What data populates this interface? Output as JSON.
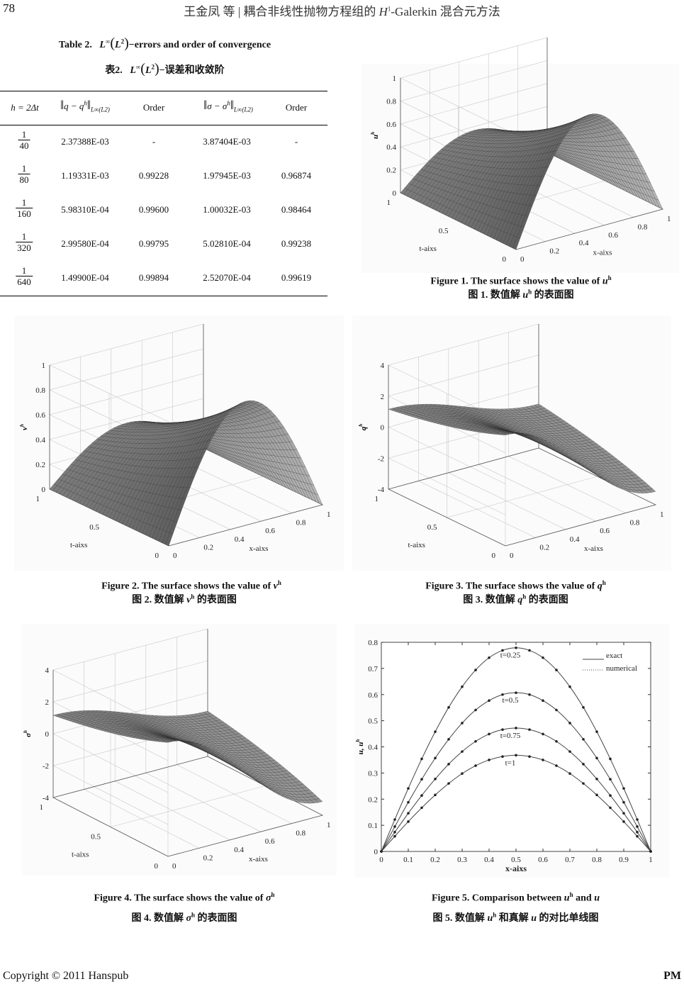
{
  "header": {
    "page_number": "78",
    "running_title_a": "王金凤 等 | 耦合非线性抛物方程组的 ",
    "running_title_h": "H",
    "running_title_sup": "1",
    "running_title_b": "-Galerkin 混合元方法"
  },
  "table": {
    "caption_en": {
      "label": "Table 2.",
      "norm": "L",
      "norm_sup": "∞",
      "inner": "L",
      "inner_sup": "2",
      "text": "−errors and order of convergence"
    },
    "caption_zh": {
      "label": "表2.",
      "norm": "L",
      "norm_sup": "∞",
      "inner": "L",
      "inner_sup": "2",
      "text": "−误差和收敛阶"
    },
    "headers": {
      "h": "h = 2Δt",
      "q_norm": "q − q",
      "q_sup": "h",
      "s_norm": "σ − σ",
      "s_sup": "h",
      "norm_sub": "L∞(L2)",
      "order1": "Order",
      "order2": "Order"
    },
    "rows": [
      {
        "h_num": "1",
        "h_den": "40",
        "q_err": "2.37388E-03",
        "q_order": "-",
        "s_err": "3.87404E-03",
        "s_order": "-"
      },
      {
        "h_num": "1",
        "h_den": "80",
        "q_err": "1.19331E-03",
        "q_order": "0.99228",
        "s_err": "1.97945E-03",
        "s_order": "0.96874"
      },
      {
        "h_num": "1",
        "h_den": "160",
        "q_err": "5.98310E-04",
        "q_order": "0.99600",
        "s_err": "1.00032E-03",
        "s_order": "0.98464"
      },
      {
        "h_num": "1",
        "h_den": "320",
        "q_err": "2.99580E-04",
        "q_order": "0.99795",
        "s_err": "5.02810E-04",
        "s_order": "0.99238"
      },
      {
        "h_num": "1",
        "h_den": "640",
        "q_err": "1.49900E-04",
        "q_order": "0.99894",
        "s_err": "2.52070E-04",
        "s_order": "0.99619"
      }
    ]
  },
  "figures": [
    {
      "en": "Figure 1. The surface shows the value of ",
      "var": "u",
      "sup": "h",
      "zh_a": "图 1.  数值解 ",
      "zh_var": "u",
      "zh_sup": "h",
      "zh_b": " 的表面图"
    },
    {
      "en": "Figure 2. The surface shows the value of ",
      "var": "v",
      "sup": "h",
      "zh_a": "图 2.  数值解 ",
      "zh_var": "v",
      "zh_sup": "h",
      "zh_b": " 的表面图"
    },
    {
      "en": "Figure 3. The surface shows the value of ",
      "var": "q",
      "sup": "h",
      "zh_a": "图 3.  数值解 ",
      "zh_var": "q",
      "zh_sup": "h",
      "zh_b": " 的表面图"
    },
    {
      "en": "Figure 4. The surface shows the value of  ",
      "var": "σ",
      "sup": "h",
      "zh_a": "图 4.  数值解 ",
      "zh_var": "σ",
      "zh_sup": "h",
      "zh_b": " 的表面图"
    },
    {
      "en": "Figure 5. Comparison between ",
      "var": "u",
      "sup": "h",
      "en_b": " and ",
      "var2": "u",
      "zh_a": "图 5.  数值解 ",
      "zh_var": "u",
      "zh_sup": "h",
      "zh_b": " 和真解 ",
      "zh_var2": "u",
      "zh_c": " 的对比单线图"
    }
  ],
  "footer": {
    "copyright": "Copyright © 2011 Hanspub",
    "journal": "PM"
  },
  "chart_data": [
    {
      "type": "surface",
      "zlabel": "u",
      "zlabel_sup": "h",
      "xlabel": "x-aixs",
      "tlabel": "t-aixs",
      "zlim": [
        0,
        1
      ],
      "zticks": [
        "0",
        "0.2",
        "0.4",
        "0.6",
        "0.8",
        "1"
      ],
      "zvals": [
        0,
        0.2,
        0.4,
        0.6,
        0.8,
        1
      ],
      "xticks": [
        "0",
        "0.2",
        "0.4",
        "0.6",
        "0.8",
        "1"
      ],
      "xvals": [
        0,
        0.2,
        0.4,
        0.6,
        0.8,
        1
      ],
      "tticks": [
        "0",
        "0.5",
        "1"
      ],
      "tvals": [
        0,
        0.5,
        1
      ],
      "grid": true
    },
    {
      "type": "surface",
      "zlabel": "v",
      "zlabel_sup": "h",
      "xlabel": "x-aixs",
      "tlabel": "t-aixs",
      "zlim": [
        0,
        1
      ],
      "zticks": [
        "0",
        "0.2",
        "0.4",
        "0.6",
        "0.8",
        "1"
      ],
      "zvals": [
        0,
        0.2,
        0.4,
        0.6,
        0.8,
        1
      ],
      "xticks": [
        "0",
        "0.2",
        "0.4",
        "0.6",
        "0.8",
        "1"
      ],
      "xvals": [
        0,
        0.2,
        0.4,
        0.6,
        0.8,
        1
      ],
      "tticks": [
        "0",
        "0.5",
        "1"
      ],
      "tvals": [
        0,
        0.5,
        1
      ],
      "grid": true
    },
    {
      "type": "surface",
      "zlabel": "q",
      "zlabel_sup": "h",
      "xlabel": "x-aixs",
      "tlabel": "t-aixs",
      "zlim": [
        -4,
        4
      ],
      "zticks": [
        "-4",
        "-2",
        "0",
        "2",
        "4"
      ],
      "zvals": [
        -4,
        -2,
        0,
        2,
        4
      ],
      "xticks": [
        "0",
        "0.2",
        "0.4",
        "0.6",
        "0.8",
        "1"
      ],
      "xvals": [
        0,
        0.2,
        0.4,
        0.6,
        0.8,
        1
      ],
      "tticks": [
        "0",
        "0.5",
        "1"
      ],
      "tvals": [
        0,
        0.5,
        1
      ],
      "grid": true
    },
    {
      "type": "surface",
      "zlabel": "σ",
      "zlabel_sup": "h",
      "xlabel": "x-aixs",
      "tlabel": "t-aixs",
      "zlim": [
        -4,
        4
      ],
      "zticks": [
        "-4",
        "-2",
        "0",
        "2",
        "4"
      ],
      "zvals": [
        -4,
        -2,
        0,
        2,
        4
      ],
      "xticks": [
        "0",
        "0.2",
        "0.4",
        "0.6",
        "0.8",
        "1"
      ],
      "xvals": [
        0,
        0.2,
        0.4,
        0.6,
        0.8,
        1
      ],
      "tticks": [
        "0",
        "0.5",
        "1"
      ],
      "tvals": [
        0,
        0.5,
        1
      ],
      "grid": true
    },
    {
      "type": "line",
      "xlabel": "x-aixs",
      "ylabel": "u, u",
      "ylabel_sup": "h",
      "xlim": [
        0,
        1
      ],
      "ylim": [
        0,
        0.8
      ],
      "xticks": [
        "0",
        "0.1",
        "0.2",
        "0.3",
        "0.4",
        "0.5",
        "0.6",
        "0.7",
        "0.8",
        "0.9",
        "1"
      ],
      "xtick_vals": [
        0,
        0.1,
        0.2,
        0.3,
        0.4,
        0.5,
        0.6,
        0.7,
        0.8,
        0.9,
        1
      ],
      "yticks": [
        "0",
        "0.1",
        "0.2",
        "0.3",
        "0.4",
        "0.5",
        "0.6",
        "0.7",
        "0.8"
      ],
      "ytick_vals": [
        0,
        0.1,
        0.2,
        0.3,
        0.4,
        0.5,
        0.6,
        0.7,
        0.8
      ],
      "legend": {
        "placement": "top-right",
        "entries": [
          "exact",
          "numerical"
        ]
      },
      "x": [
        0,
        0.05,
        0.1,
        0.15,
        0.2,
        0.25,
        0.3,
        0.35,
        0.4,
        0.45,
        0.5,
        0.55,
        0.6,
        0.65,
        0.7,
        0.75,
        0.8,
        0.85,
        0.9,
        0.95,
        1
      ],
      "series": [
        {
          "name": "t=0.25",
          "values": [
            0,
            0.122,
            0.241,
            0.354,
            0.458,
            0.551,
            0.63,
            0.694,
            0.741,
            0.769,
            0.779,
            0.769,
            0.741,
            0.694,
            0.63,
            0.551,
            0.458,
            0.354,
            0.241,
            0.122,
            0
          ]
        },
        {
          "name": "t=0.5",
          "values": [
            0,
            0.095,
            0.188,
            0.276,
            0.357,
            0.429,
            0.491,
            0.541,
            0.577,
            0.6,
            0.607,
            0.6,
            0.577,
            0.541,
            0.491,
            0.429,
            0.357,
            0.276,
            0.188,
            0.095,
            0
          ]
        },
        {
          "name": "t=0.75",
          "values": [
            0,
            0.074,
            0.146,
            0.214,
            0.277,
            0.334,
            0.382,
            0.421,
            0.449,
            0.466,
            0.472,
            0.466,
            0.449,
            0.421,
            0.382,
            0.334,
            0.277,
            0.214,
            0.146,
            0.074,
            0
          ]
        },
        {
          "name": "t=1",
          "values": [
            0,
            0.058,
            0.114,
            0.167,
            0.216,
            0.26,
            0.298,
            0.328,
            0.35,
            0.363,
            0.368,
            0.363,
            0.35,
            0.328,
            0.298,
            0.26,
            0.216,
            0.167,
            0.114,
            0.058,
            0
          ]
        }
      ]
    }
  ]
}
